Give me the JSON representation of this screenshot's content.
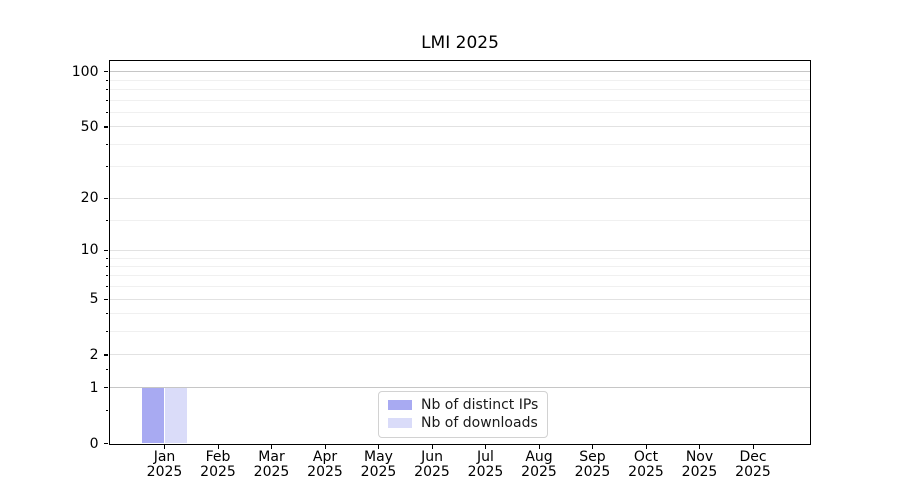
{
  "chart_data": {
    "type": "bar",
    "title": "LMI 2025",
    "categories": [
      "Jan\n2025",
      "Feb\n2025",
      "Mar\n2025",
      "Apr\n2025",
      "May\n2025",
      "Jun\n2025",
      "Jul\n2025",
      "Aug\n2025",
      "Sep\n2025",
      "Oct\n2025",
      "Nov\n2025",
      "Dec\n2025"
    ],
    "series": [
      {
        "name": "Nb of distinct IPs",
        "color": "#a8aaf2",
        "values": [
          1,
          0,
          0,
          0,
          0,
          0,
          0,
          0,
          0,
          0,
          0,
          0
        ]
      },
      {
        "name": "Nb of downloads",
        "color": "#dadcf9",
        "values": [
          1,
          0,
          0,
          0,
          0,
          0,
          0,
          0,
          0,
          0,
          0,
          0
        ]
      }
    ],
    "xlabel": "",
    "ylabel": "",
    "y_axis": {
      "scale": "log1p",
      "ylim": [
        0,
        113.6
      ],
      "ticks": [
        0,
        1,
        2,
        5,
        10,
        20,
        50,
        100
      ],
      "minor_ticks": [
        0.5,
        1.5,
        3,
        4,
        6,
        7,
        8,
        9,
        15,
        30,
        40,
        60,
        70,
        80,
        90
      ],
      "gridline_values": [
        1,
        2,
        3,
        4,
        5,
        6,
        7,
        8,
        9,
        10,
        15,
        20,
        30,
        40,
        50,
        60,
        70,
        80,
        90,
        100
      ],
      "emphasized_gridlines": [
        1,
        100
      ]
    },
    "grid": true,
    "legend": {
      "position": "lower-center-inside",
      "entries": [
        "Nb of distinct IPs",
        "Nb of downloads"
      ]
    }
  }
}
